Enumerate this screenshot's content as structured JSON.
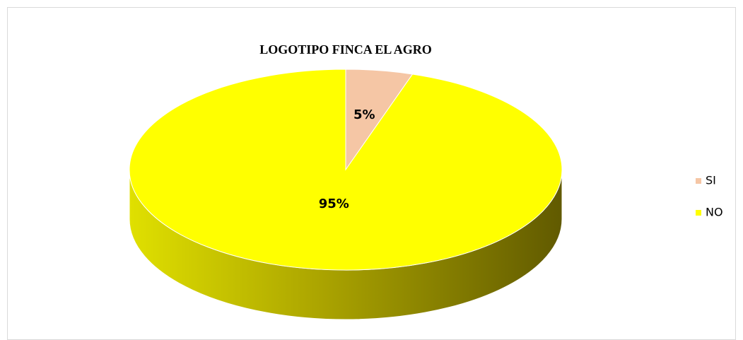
{
  "chart_data": {
    "type": "pie",
    "title": "LOGOTIPO FINCA EL AGRO",
    "categories": [
      "SI",
      "NO"
    ],
    "values": [
      5,
      95
    ],
    "value_labels": [
      "5%",
      "95%"
    ],
    "colors": [
      "#f5c6a5",
      "#ffff00"
    ],
    "legend": "right"
  }
}
